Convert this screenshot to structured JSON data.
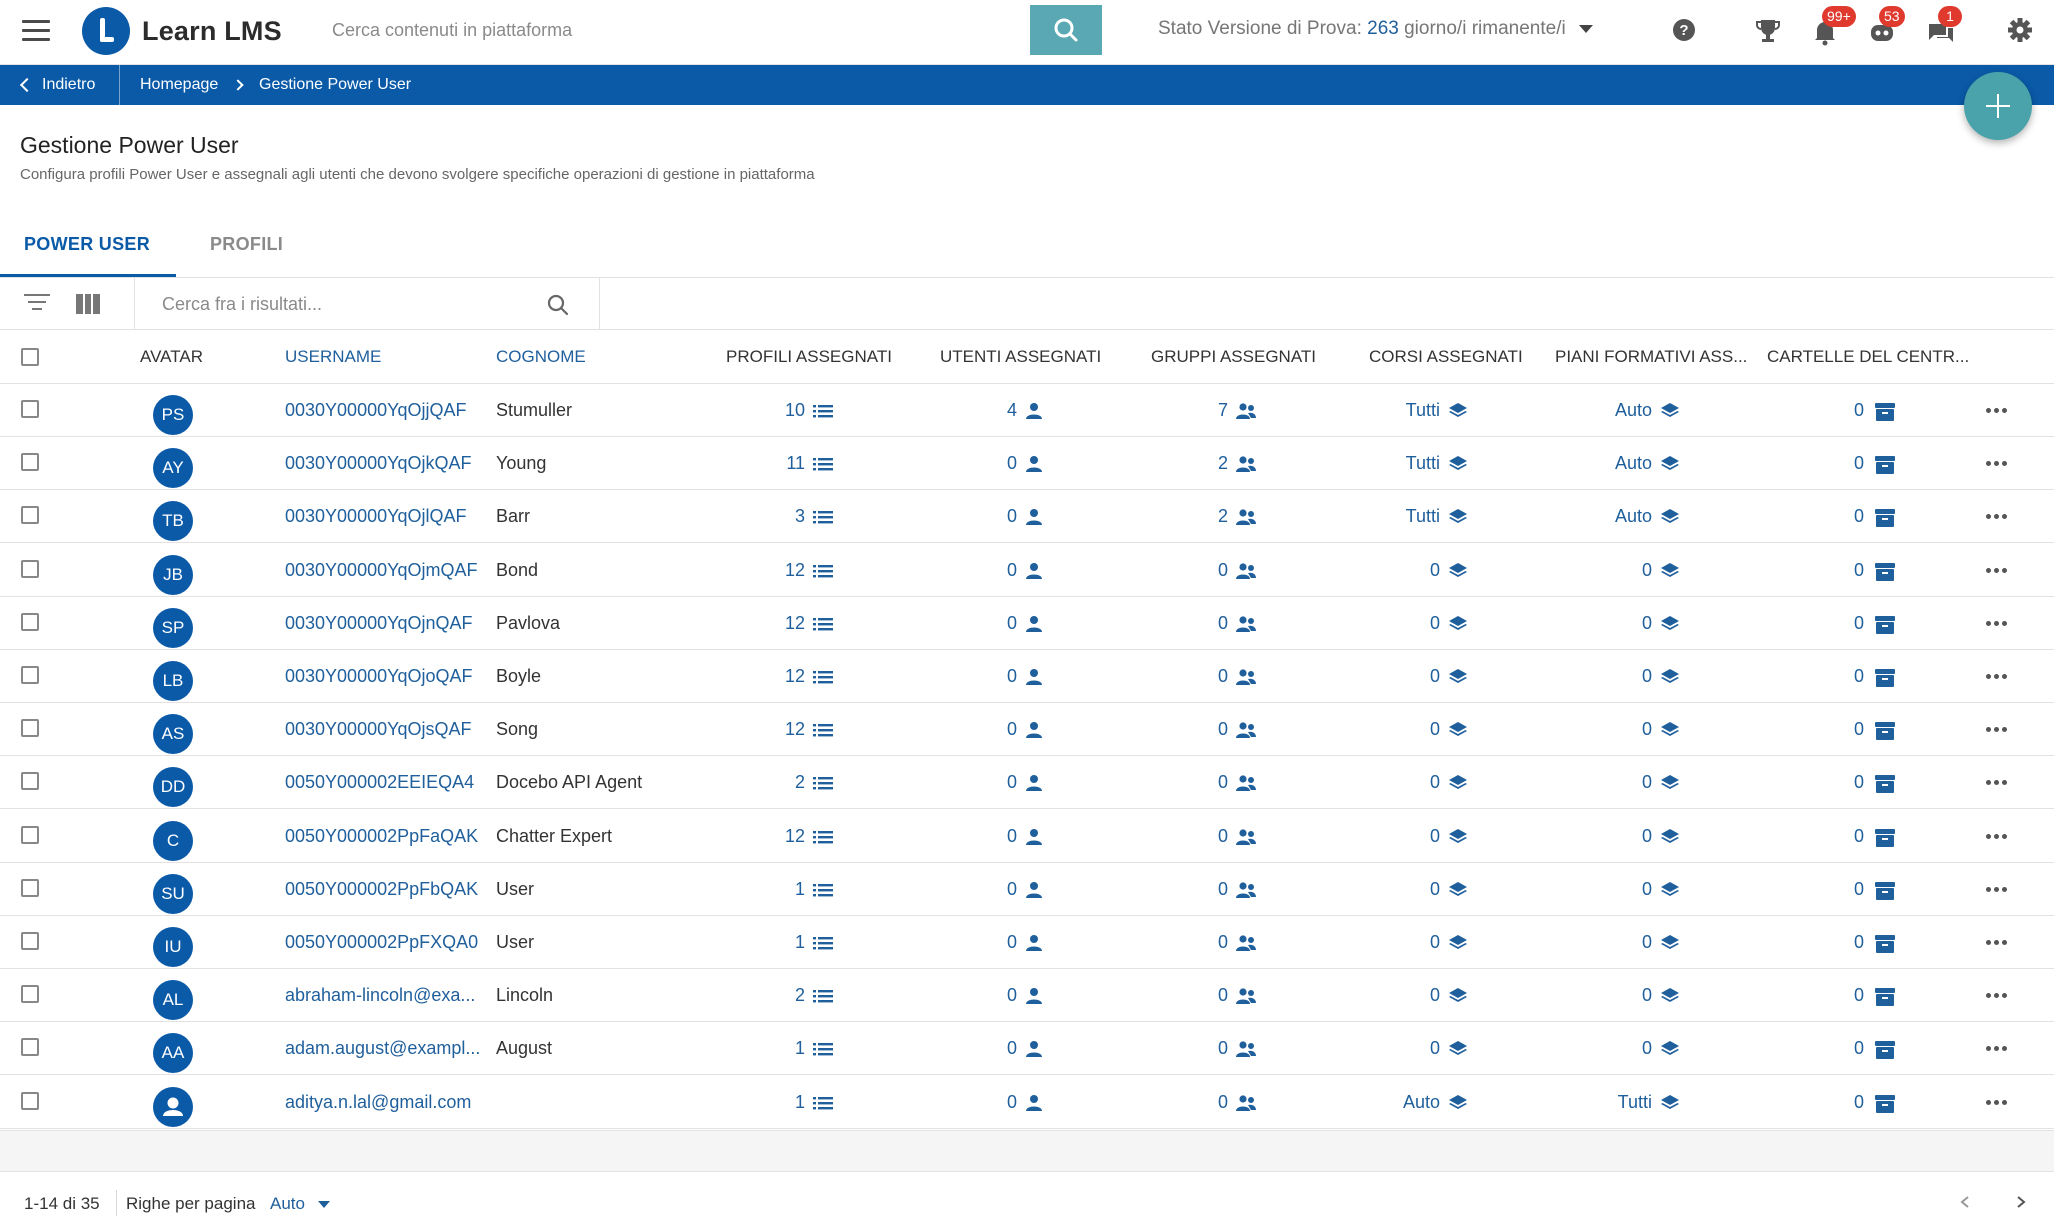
{
  "app": {
    "name": "Learn LMS"
  },
  "search": {
    "placeholder": "Cerca contenuti in piattaforma"
  },
  "trial": {
    "label": "Stato Versione di Prova:",
    "days": "263",
    "suffix": "giorno/i rimanente/i"
  },
  "notifications": {
    "trophy_badge": "",
    "bell_badge": "99+",
    "robot_badge": "53",
    "chat_badge": "1"
  },
  "icons": {
    "menu": "hamburger-icon",
    "help": "help-circle-icon",
    "trophy": "trophy-icon",
    "bell": "bell-icon",
    "robot": "robot-icon",
    "chat": "chat-icon",
    "settings": "gear-icon"
  },
  "breadcrumb": {
    "back": "Indietro",
    "home": "Homepage",
    "current": "Gestione Power User"
  },
  "page": {
    "title": "Gestione Power User",
    "subtitle": "Configura profili Power User e assegnali agli utenti che devono svolgere specifiche operazioni di gestione in piattaforma"
  },
  "tabs": [
    {
      "label": "POWER USER",
      "active": true
    },
    {
      "label": "PROFILI",
      "active": false
    }
  ],
  "table": {
    "search_placeholder": "Cerca fra i risultati...",
    "headers": {
      "avatar": "AVATAR",
      "username": "USERNAME",
      "cognome": "COGNOME",
      "profili": "PROFILI ASSEGNATI",
      "utenti": "UTENTI ASSEGNATI",
      "gruppi": "GRUPPI ASSEGNATI",
      "corsi": "CORSI ASSEGNATI",
      "piani": "PIANI FORMATIVI ASS...",
      "cartelle": "CARTELLE DEL CENTR..."
    },
    "rows": [
      {
        "initials": "PS",
        "username": "0030Y00000YqOjjQAF",
        "cognome": "Stumuller",
        "profili": "10",
        "utenti": "4",
        "gruppi": "7",
        "corsi": "Tutti",
        "piani": "Auto",
        "cartelle": "0"
      },
      {
        "initials": "AY",
        "username": "0030Y00000YqOjkQAF",
        "cognome": "Young",
        "profili": "11",
        "utenti": "0",
        "gruppi": "2",
        "corsi": "Tutti",
        "piani": "Auto",
        "cartelle": "0"
      },
      {
        "initials": "TB",
        "username": "0030Y00000YqOjlQAF",
        "cognome": "Barr",
        "profili": "3",
        "utenti": "0",
        "gruppi": "2",
        "corsi": "Tutti",
        "piani": "Auto",
        "cartelle": "0"
      },
      {
        "initials": "JB",
        "username": "0030Y00000YqOjmQAF",
        "cognome": "Bond",
        "profili": "12",
        "utenti": "0",
        "gruppi": "0",
        "corsi": "0",
        "piani": "0",
        "cartelle": "0"
      },
      {
        "initials": "SP",
        "username": "0030Y00000YqOjnQAF",
        "cognome": "Pavlova",
        "profili": "12",
        "utenti": "0",
        "gruppi": "0",
        "corsi": "0",
        "piani": "0",
        "cartelle": "0"
      },
      {
        "initials": "LB",
        "username": "0030Y00000YqOjoQAF",
        "cognome": "Boyle",
        "profili": "12",
        "utenti": "0",
        "gruppi": "0",
        "corsi": "0",
        "piani": "0",
        "cartelle": "0"
      },
      {
        "initials": "AS",
        "username": "0030Y00000YqOjsQAF",
        "cognome": "Song",
        "profili": "12",
        "utenti": "0",
        "gruppi": "0",
        "corsi": "0",
        "piani": "0",
        "cartelle": "0"
      },
      {
        "initials": "DD",
        "username": "0050Y000002EEIEQA4",
        "cognome": "Docebo API Agent",
        "profili": "2",
        "utenti": "0",
        "gruppi": "0",
        "corsi": "0",
        "piani": "0",
        "cartelle": "0"
      },
      {
        "initials": "C",
        "username": "0050Y000002PpFaQAK",
        "cognome": "Chatter Expert",
        "profili": "12",
        "utenti": "0",
        "gruppi": "0",
        "corsi": "0",
        "piani": "0",
        "cartelle": "0"
      },
      {
        "initials": "SU",
        "username": "0050Y000002PpFbQAK",
        "cognome": "User",
        "profili": "1",
        "utenti": "0",
        "gruppi": "0",
        "corsi": "0",
        "piani": "0",
        "cartelle": "0"
      },
      {
        "initials": "IU",
        "username": "0050Y000002PpFXQA0",
        "cognome": "User",
        "profili": "1",
        "utenti": "0",
        "gruppi": "0",
        "corsi": "0",
        "piani": "0",
        "cartelle": "0"
      },
      {
        "initials": "AL",
        "username": "abraham-lincoln@exa...",
        "cognome": "Lincoln",
        "profili": "2",
        "utenti": "0",
        "gruppi": "0",
        "corsi": "0",
        "piani": "0",
        "cartelle": "0"
      },
      {
        "initials": "AA",
        "username": "adam.august@exampl...",
        "cognome": "August",
        "profili": "1",
        "utenti": "0",
        "gruppi": "0",
        "corsi": "0",
        "piani": "0",
        "cartelle": "0"
      },
      {
        "initials": "",
        "username": "aditya.n.lal@gmail.com",
        "cognome": "",
        "profili": "1",
        "utenti": "0",
        "gruppi": "0",
        "corsi": "Auto",
        "piani": "Tutti",
        "cartelle": "0"
      }
    ]
  },
  "footer": {
    "range": "1-14 di 35",
    "rows_per_page_label": "Righe per pagina",
    "rows_per_page_value": "Auto"
  },
  "colors": {
    "primary": "#0a5aa8",
    "link": "#1f5f9c",
    "teal": "#5aa8b4",
    "badge": "#e03a2f"
  }
}
